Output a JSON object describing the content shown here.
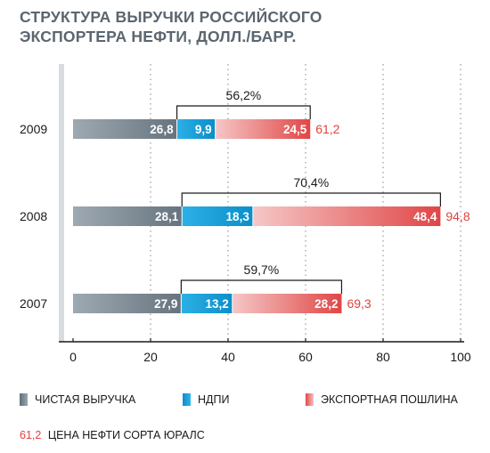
{
  "title_line1": "СТРУКТУРА ВЫРУЧКИ РОССИЙСКОГО",
  "title_line2": "ЭКСПОРТЕРА НЕФТИ, ДОЛЛ./БАРР.",
  "chart_data": {
    "type": "bar",
    "orientation": "horizontal",
    "stacked": true,
    "categories": [
      "2009",
      "2008",
      "2007"
    ],
    "series": [
      {
        "name": "ЧИСТАЯ ВЫРУЧКА",
        "values": [
          26.8,
          28.1,
          27.9
        ],
        "labels": [
          "26,8",
          "28,1",
          "27,9"
        ],
        "color": "#7f909c"
      },
      {
        "name": "НДПИ",
        "values": [
          9.9,
          18.3,
          13.2
        ],
        "labels": [
          "9,9",
          "18,3",
          "13,2"
        ],
        "color": "#1aa3da"
      },
      {
        "name": "ЭКСПОРТНАЯ ПОШЛИНА",
        "values": [
          24.5,
          48.4,
          28.2
        ],
        "labels": [
          "24,5",
          "48,4",
          "28,2"
        ],
        "color": "#e8595a"
      }
    ],
    "totals": [
      61.2,
      94.8,
      69.3
    ],
    "total_labels": [
      "61,2",
      "94,8",
      "69,3"
    ],
    "share_labels": [
      "56,2%",
      "70,4%",
      "59,7%"
    ],
    "xlim": [
      0,
      100
    ],
    "xticks": [
      0,
      20,
      40,
      60,
      80,
      100
    ],
    "grid": "vertical dotted",
    "colors": {
      "total": "#e0423f",
      "title": "#5b6670"
    }
  },
  "legend": {
    "item1": "ЧИСТАЯ ВЫРУЧКА",
    "item2": "НДПИ",
    "item3": "ЭКСПОРТНАЯ ПОШЛИНА"
  },
  "note": {
    "value": "61,2",
    "text": "ЦЕНА НЕФТИ СОРТА ЮРАЛС"
  }
}
